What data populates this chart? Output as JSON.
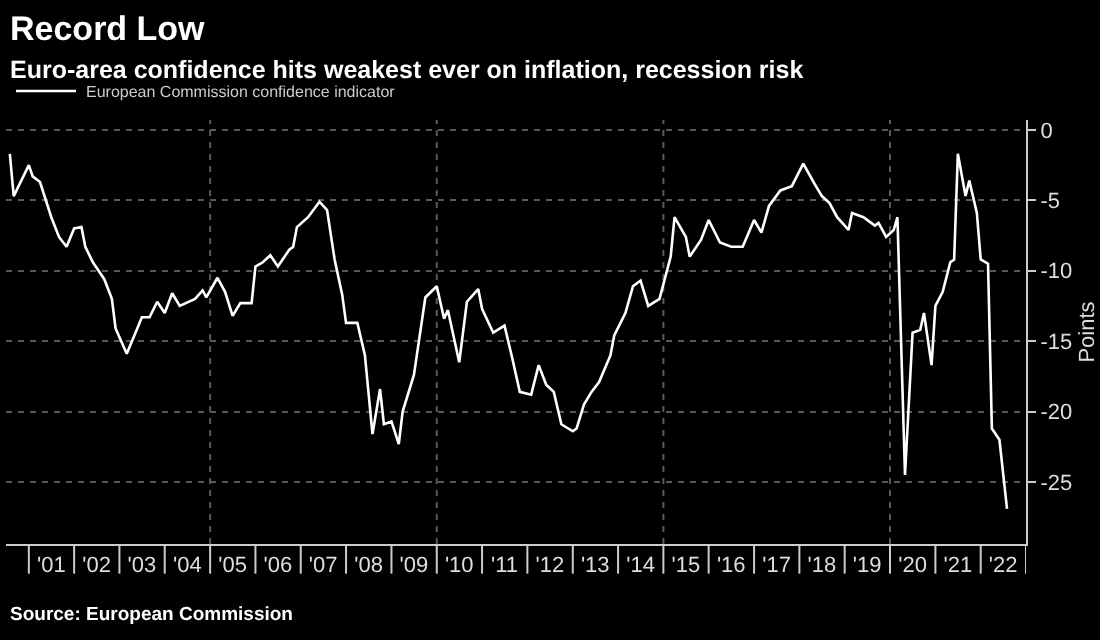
{
  "chart_data": {
    "type": "line",
    "title": "Record Low",
    "subtitle": "Euro-area confidence hits weakest ever on inflation, recession risk",
    "ylabel": "Points",
    "annotations": [
      "Source: European Commission"
    ],
    "legend": "top left",
    "grid": "y",
    "marker": "none",
    "line_style": "solid",
    "series": [
      {
        "name": "European Commission confidence indicator",
        "color": "#ffffff",
        "x": [
          "2000-08",
          "2000-09",
          "2001-01",
          "2001-02",
          "2001-04",
          "2001-07",
          "2001-09",
          "2001-11",
          "2002-01",
          "2002-03",
          "2002-04",
          "2002-06",
          "2002-09",
          "2002-11",
          "2002-12",
          "2003-03",
          "2003-07",
          "2003-09",
          "2003-11",
          "2004-01",
          "2004-03",
          "2004-05",
          "2004-09",
          "2004-11",
          "2004-12",
          "2005-03",
          "2005-05",
          "2005-07",
          "2005-09",
          "2005-12",
          "2006-01",
          "2006-03",
          "2006-05",
          "2006-07",
          "2006-10",
          "2006-11",
          "2006-12",
          "2007-03",
          "2007-06",
          "2007-08",
          "2007-10",
          "2007-12",
          "2008-01",
          "2008-04",
          "2008-06",
          "2008-08",
          "2008-10",
          "2008-11",
          "2009-01",
          "2009-03",
          "2009-04",
          "2009-07",
          "2009-10",
          "2010-01",
          "2010-03",
          "2010-04",
          "2010-07",
          "2010-09",
          "2010-12",
          "2011-01",
          "2011-04",
          "2011-07",
          "2011-09",
          "2011-11",
          "2012-02",
          "2012-04",
          "2012-06",
          "2012-08",
          "2012-10",
          "2013-01",
          "2013-02",
          "2013-04",
          "2013-06",
          "2013-08",
          "2013-11",
          "2013-12",
          "2014-03",
          "2014-05",
          "2014-07",
          "2014-09",
          "2014-12",
          "2015-03",
          "2015-04",
          "2015-07",
          "2015-08",
          "2015-11",
          "2016-01",
          "2016-04",
          "2016-07",
          "2016-10",
          "2017-01",
          "2017-03",
          "2017-05",
          "2017-08",
          "2017-11",
          "2018-02",
          "2018-05",
          "2018-07",
          "2018-09",
          "2018-11",
          "2019-02",
          "2019-03",
          "2019-06",
          "2019-09",
          "2019-10",
          "2019-12",
          "2020-02",
          "2020-03",
          "2020-05",
          "2020-07",
          "2020-09",
          "2020-10",
          "2020-12",
          "2021-01",
          "2021-03",
          "2021-05",
          "2021-06",
          "2021-07",
          "2021-09",
          "2021-10",
          "2021-12",
          "2022-01",
          "2022-03",
          "2022-04",
          "2022-06",
          "2022-08"
        ],
        "values": [
          -1.7,
          -4.7,
          -2.5,
          -3.3,
          -3.7,
          -6.2,
          -7.6,
          -8.3,
          -7.0,
          -6.9,
          -8.3,
          -9.4,
          -10.6,
          -12.0,
          -14.1,
          -15.9,
          -13.3,
          -13.3,
          -12.2,
          -13.0,
          -11.6,
          -12.5,
          -12.0,
          -11.4,
          -11.9,
          -10.5,
          -11.5,
          -13.2,
          -12.3,
          -12.3,
          -9.7,
          -9.4,
          -8.9,
          -9.7,
          -8.5,
          -8.3,
          -6.9,
          -6.2,
          -5.1,
          -5.7,
          -9.2,
          -11.7,
          -13.7,
          -13.7,
          -16.0,
          -21.6,
          -18.4,
          -20.9,
          -20.7,
          -22.3,
          -20.0,
          -17.4,
          -11.9,
          -11.1,
          -13.4,
          -12.8,
          -16.5,
          -12.2,
          -11.3,
          -12.7,
          -14.4,
          -13.9,
          -16.2,
          -18.6,
          -18.8,
          -16.7,
          -18.1,
          -18.6,
          -20.9,
          -21.4,
          -21.2,
          -19.5,
          -18.6,
          -17.9,
          -16.0,
          -14.6,
          -13.0,
          -11.1,
          -10.7,
          -12.5,
          -12.0,
          -9.0,
          -6.2,
          -7.6,
          -9.0,
          -7.8,
          -6.4,
          -8.0,
          -8.3,
          -8.3,
          -6.4,
          -7.3,
          -5.4,
          -4.3,
          -4.0,
          -2.4,
          -3.8,
          -4.7,
          -5.2,
          -6.2,
          -7.1,
          -5.9,
          -6.2,
          -6.8,
          -6.6,
          -7.6,
          -7.1,
          -6.2,
          -24.5,
          -14.4,
          -14.2,
          -13.0,
          -16.7,
          -12.5,
          -11.5,
          -9.4,
          -9.2,
          -1.7,
          -4.7,
          -3.6,
          -5.9,
          -9.2,
          -9.5,
          -21.2,
          -22.0,
          -26.9
        ]
      }
    ],
    "xlim": [
      "2000-07",
      "2023-01"
    ],
    "xticks": [
      {
        "value": "2001-01",
        "label": null
      },
      {
        "value": "2001-07",
        "label": "'01"
      },
      {
        "value": "2002-01",
        "label": null
      },
      {
        "value": "2002-07",
        "label": "'02"
      },
      {
        "value": "2003-01",
        "label": null
      },
      {
        "value": "2003-07",
        "label": "'03"
      },
      {
        "value": "2004-01",
        "label": null
      },
      {
        "value": "2004-07",
        "label": "'04"
      },
      {
        "value": "2005-01",
        "label": null
      },
      {
        "value": "2005-07",
        "label": "'05"
      },
      {
        "value": "2006-01",
        "label": null
      },
      {
        "value": "2006-07",
        "label": "'06"
      },
      {
        "value": "2007-01",
        "label": null
      },
      {
        "value": "2007-07",
        "label": "'07"
      },
      {
        "value": "2008-01",
        "label": null
      },
      {
        "value": "2008-07",
        "label": "'08"
      },
      {
        "value": "2009-01",
        "label": null
      },
      {
        "value": "2009-07",
        "label": "'09"
      },
      {
        "value": "2010-01",
        "label": null
      },
      {
        "value": "2010-07",
        "label": "'10"
      },
      {
        "value": "2011-01",
        "label": null
      },
      {
        "value": "2011-07",
        "label": "'11"
      },
      {
        "value": "2012-01",
        "label": null
      },
      {
        "value": "2012-07",
        "label": "'12"
      },
      {
        "value": "2013-01",
        "label": null
      },
      {
        "value": "2013-07",
        "label": "'13"
      },
      {
        "value": "2014-01",
        "label": null
      },
      {
        "value": "2014-07",
        "label": "'14"
      },
      {
        "value": "2015-01",
        "label": null
      },
      {
        "value": "2015-07",
        "label": "'15"
      },
      {
        "value": "2016-01",
        "label": null
      },
      {
        "value": "2016-07",
        "label": "'16"
      },
      {
        "value": "2017-01",
        "label": null
      },
      {
        "value": "2017-07",
        "label": "'17"
      },
      {
        "value": "2018-01",
        "label": null
      },
      {
        "value": "2018-07",
        "label": "'18"
      },
      {
        "value": "2019-01",
        "label": null
      },
      {
        "value": "2019-07",
        "label": "'19"
      },
      {
        "value": "2020-01",
        "label": null
      },
      {
        "value": "2020-07",
        "label": "'20"
      },
      {
        "value": "2021-01",
        "label": null
      },
      {
        "value": "2021-07",
        "label": "'21"
      },
      {
        "value": "2022-01",
        "label": null
      },
      {
        "value": "2022-07",
        "label": "'22"
      },
      {
        "value": "2023-01",
        "label": null
      }
    ],
    "ylim": [
      -29.4,
      0.7
    ],
    "yticks": [
      0,
      -5,
      -10,
      -15,
      -20,
      -25
    ],
    "ref_lines": [
      {
        "axis": "x",
        "value": "2005-01",
        "color": "#5a5a5a",
        "line_style": "dotted"
      },
      {
        "axis": "x",
        "value": "2010-01",
        "color": "#5a5a5a",
        "line_style": "dotted"
      },
      {
        "axis": "x",
        "value": "2015-01",
        "color": "#5a5a5a",
        "line_style": "dotted"
      },
      {
        "axis": "x",
        "value": "2020-01",
        "color": "#5a5a5a",
        "line_style": "dotted"
      }
    ]
  }
}
